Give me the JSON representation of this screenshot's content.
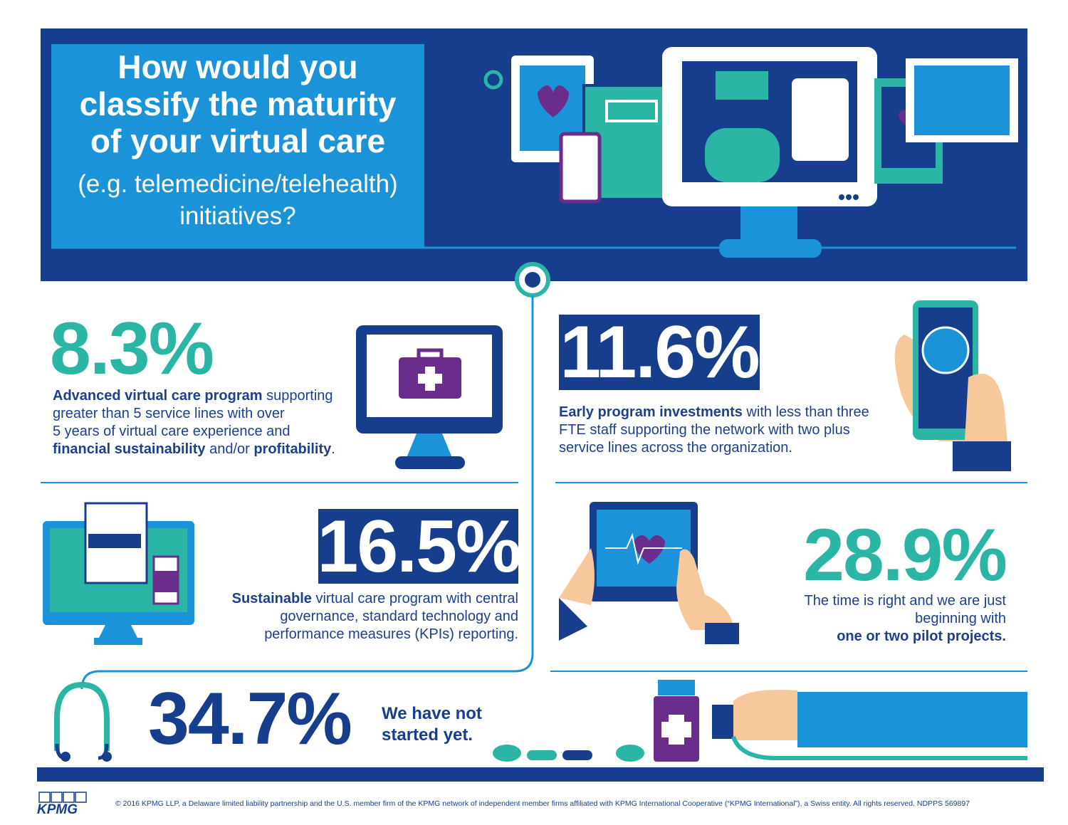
{
  "header": {
    "title": [
      "How would you",
      "classify the maturity",
      "of your virtual care"
    ],
    "subtitle": [
      "(e.g. telemedicine/telehealth)",
      "initiatives?"
    ]
  },
  "items": [
    {
      "percent": "8.3%",
      "text": [
        "Advanced virtual care program",
        " supporting",
        "greater than 5 service lines with over",
        "5 years of virtual care experience and",
        "financial sustainability",
        " and/or ",
        "profitability",
        "."
      ]
    },
    {
      "percent": "11.6%",
      "text": [
        "Early program investments",
        " with less than three",
        "FTE staff supporting the network with two plus",
        "service lines across the organization."
      ]
    },
    {
      "percent": "16.5%",
      "text": [
        "Sustainable",
        " virtual care program with central",
        "governance, standard technology and",
        "performance measures (KPIs) reporting."
      ]
    },
    {
      "percent": "28.9%",
      "text": [
        "The time is right and we are just",
        "beginning with",
        "one or two pilot projects."
      ]
    },
    {
      "percent": "34.7%",
      "text": [
        "We have not",
        "started yet."
      ]
    }
  ],
  "footer": {
    "logo": "KPMG",
    "copyright": "© 2016 KPMG LLP, a Delaware limited liability partnership and the U.S. member firm of the KPMG network of independent member firms affiliated with KPMG International Cooperative (“KPMG International”), a Swiss entity. All rights reserved. NDPPS 569897"
  }
}
